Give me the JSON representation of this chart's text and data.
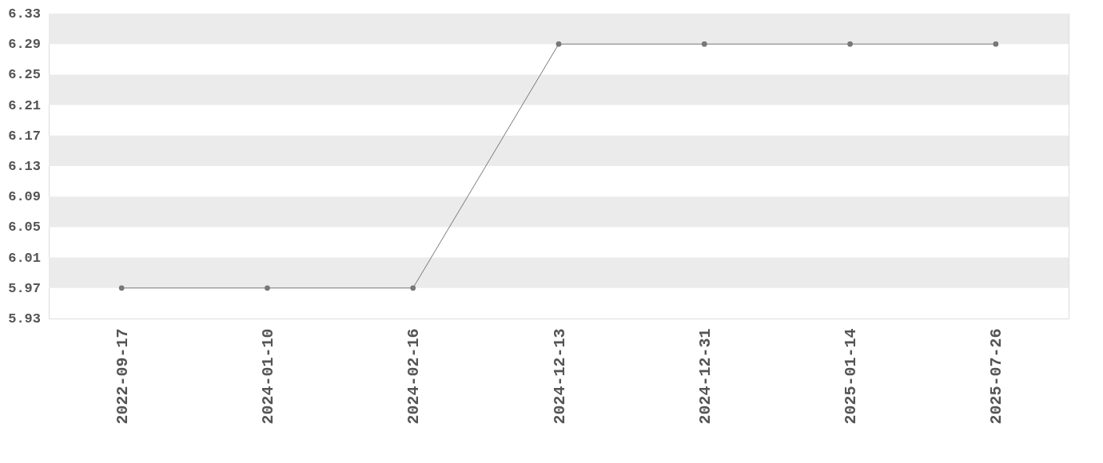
{
  "chart_data": {
    "type": "line",
    "categories": [
      "2022-09-17",
      "2024-01-10",
      "2024-02-16",
      "2024-12-13",
      "2024-12-31",
      "2025-01-14",
      "2025-07-26"
    ],
    "series": [
      {
        "color": "#777777",
        "values": [
          5.97,
          5.97,
          5.97,
          6.29,
          6.29,
          6.29,
          6.29
        ]
      }
    ],
    "ylim": [
      5.93,
      6.33
    ],
    "yticks": [
      5.93,
      5.97,
      6.01,
      6.05,
      6.09,
      6.13,
      6.17,
      6.21,
      6.25,
      6.29,
      6.33
    ],
    "bands": [
      {
        "axis": "y",
        "from": 5.97,
        "to": 6.01,
        "color": "#ebebeb"
      },
      {
        "axis": "y",
        "from": 6.05,
        "to": 6.09,
        "color": "#ebebeb"
      },
      {
        "axis": "y",
        "from": 6.13,
        "to": 6.17,
        "color": "#ebebeb"
      },
      {
        "axis": "y",
        "from": 6.21,
        "to": 6.25,
        "color": "#ebebeb"
      },
      {
        "axis": "y",
        "from": 6.29,
        "to": 6.33,
        "color": "#ebebeb"
      }
    ],
    "marker": "circle",
    "line_style": "solid",
    "grid": false
  }
}
